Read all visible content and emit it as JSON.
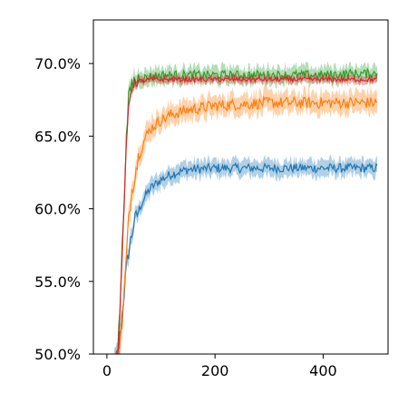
{
  "chart_data": {
    "type": "line",
    "title": "",
    "xlabel": "",
    "ylabel": "",
    "xlim": [
      -25,
      520
    ],
    "ylim": [
      0.5,
      0.73
    ],
    "x_ticks": [
      0,
      200,
      400
    ],
    "x_tick_labels": [
      "0",
      "200",
      "400"
    ],
    "y_ticks": [
      0.5,
      0.55,
      0.6,
      0.65,
      0.7
    ],
    "y_tick_labels": [
      "50.0%",
      "55.0%",
      "60.0%",
      "65.0%",
      "70.0%"
    ],
    "grid": false,
    "legend": false,
    "band": "shaded variability band around each mean line",
    "series": [
      {
        "color": "#1f77b4",
        "x": [
          0,
          10,
          20,
          25,
          30,
          35,
          40,
          45,
          50,
          60,
          70,
          80,
          100,
          120,
          150,
          200,
          250,
          300,
          350,
          400,
          450,
          500
        ],
        "values": [
          0.485,
          0.49,
          0.5,
          0.515,
          0.535,
          0.555,
          0.57,
          0.58,
          0.59,
          0.6,
          0.608,
          0.614,
          0.62,
          0.624,
          0.627,
          0.628,
          0.628,
          0.628,
          0.628,
          0.628,
          0.628,
          0.628
        ],
        "band_width": 0.004
      },
      {
        "color": "#ff7f0e",
        "x": [
          0,
          10,
          20,
          25,
          30,
          35,
          40,
          45,
          50,
          60,
          70,
          80,
          100,
          120,
          150,
          200,
          250,
          300,
          350,
          400,
          450,
          500
        ],
        "values": [
          0.485,
          0.49,
          0.495,
          0.51,
          0.53,
          0.56,
          0.59,
          0.61,
          0.622,
          0.638,
          0.648,
          0.655,
          0.661,
          0.665,
          0.668,
          0.671,
          0.672,
          0.673,
          0.673,
          0.673,
          0.673,
          0.673
        ],
        "band_width": 0.005
      },
      {
        "color": "#2ca02c",
        "x": [
          0,
          10,
          20,
          25,
          30,
          35,
          40,
          45,
          50,
          60,
          70,
          80,
          100,
          120,
          150,
          200,
          250,
          300,
          350,
          400,
          450,
          500
        ],
        "values": [
          0.485,
          0.49,
          0.5,
          0.54,
          0.59,
          0.64,
          0.675,
          0.685,
          0.688,
          0.69,
          0.69,
          0.691,
          0.692,
          0.692,
          0.692,
          0.692,
          0.692,
          0.692,
          0.692,
          0.692,
          0.693,
          0.693
        ],
        "band_width": 0.004
      },
      {
        "color": "#d62728",
        "x": [
          0,
          10,
          20,
          25,
          30,
          35,
          40,
          45,
          50,
          60,
          70,
          80,
          100,
          120,
          150,
          200,
          250,
          300,
          350,
          400,
          450,
          500
        ],
        "values": [
          0.485,
          0.49,
          0.5,
          0.535,
          0.585,
          0.635,
          0.67,
          0.682,
          0.686,
          0.688,
          0.688,
          0.689,
          0.689,
          0.689,
          0.689,
          0.689,
          0.689,
          0.689,
          0.689,
          0.689,
          0.689,
          0.689
        ],
        "band_width": 0.002
      }
    ]
  }
}
